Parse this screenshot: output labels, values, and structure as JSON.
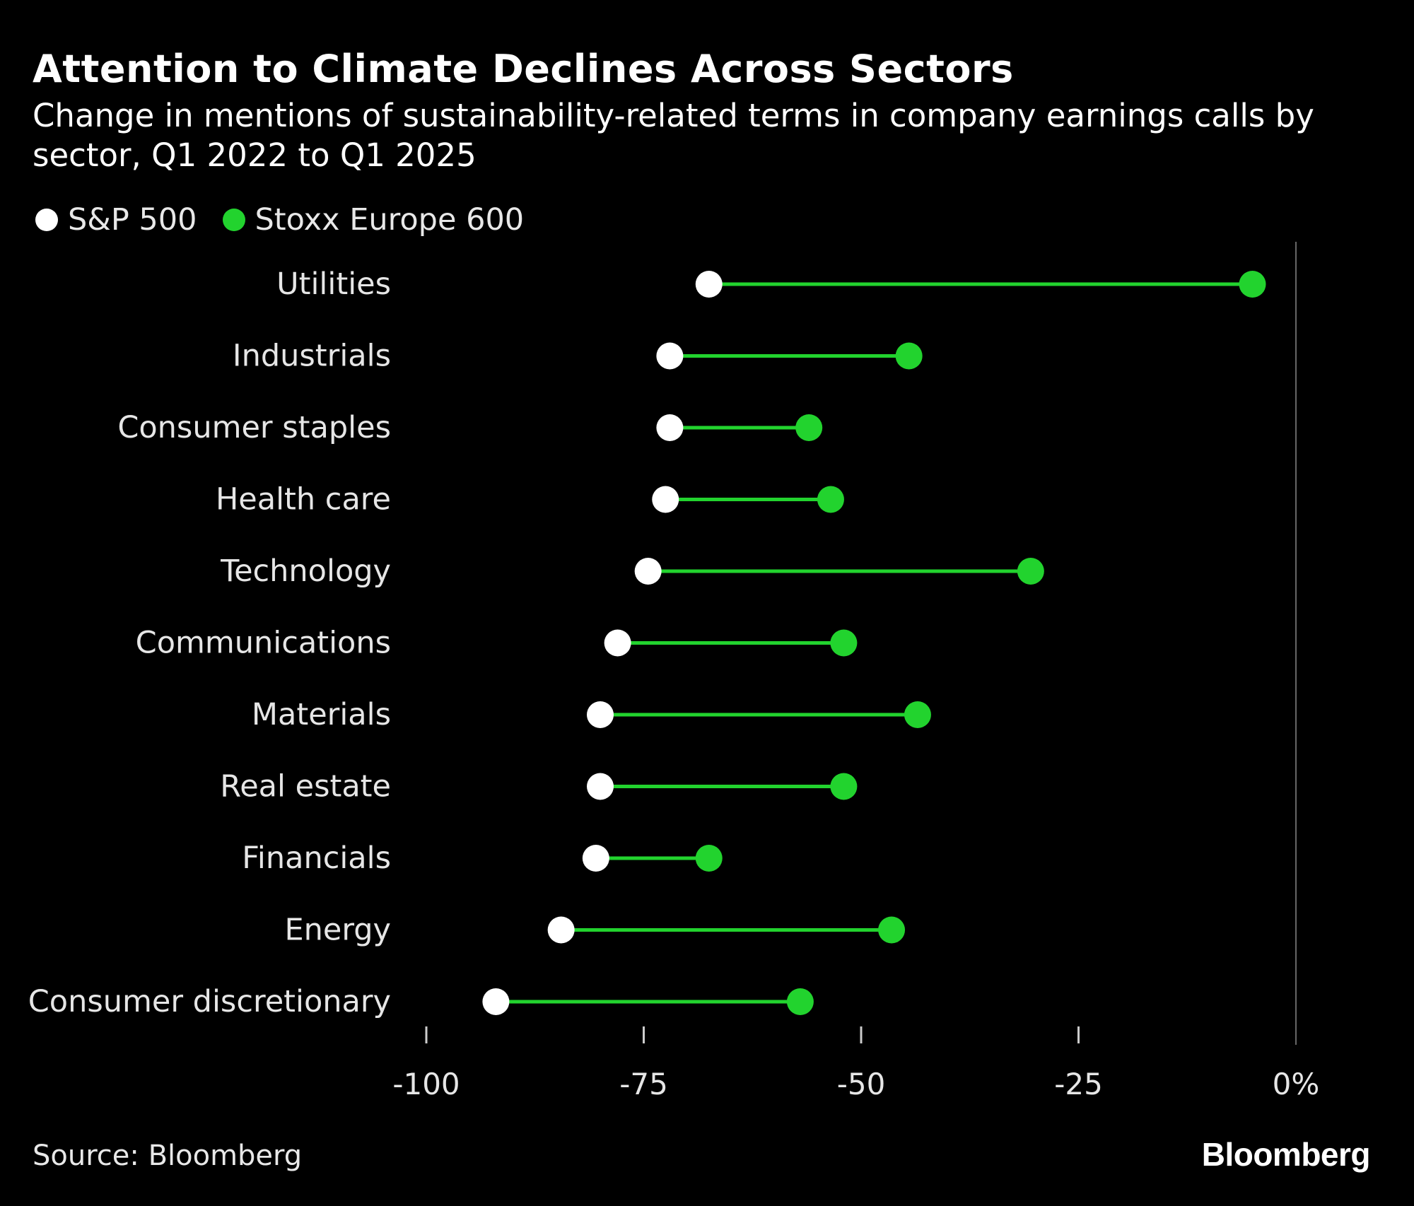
{
  "header": {
    "title": "Attention to Climate Declines Across Sectors",
    "subtitle": "Change in mentions of sustainability-related terms in company earnings calls by sector, Q1 2022 to Q1 2025"
  },
  "legend": [
    {
      "label": "S&P 500",
      "color": "#ffffff"
    },
    {
      "label": "Stoxx Europe 600",
      "color": "#22d32e"
    }
  ],
  "colors": {
    "background": "#000000",
    "sp500": "#ffffff",
    "stoxx": "#22d32e",
    "connector": "#22d32e",
    "zero_line": "#666666",
    "text": "#e6e6e6"
  },
  "chart_data": {
    "type": "dumbbell",
    "title": "Attention to Climate Declines Across Sectors",
    "subtitle": "Change in mentions of sustainability-related terms in company earnings calls by sector, Q1 2022 to Q1 2025",
    "xlabel": "",
    "ylabel": "",
    "xlim": [
      -100,
      0
    ],
    "xticks": [
      -100,
      -75,
      -50,
      -25,
      0
    ],
    "xtick_labels": [
      "-100",
      "-75",
      "-50",
      "-25",
      "0%"
    ],
    "grid": false,
    "legend_position": "top-left",
    "categories": [
      "Utilities",
      "Industrials",
      "Consumer staples",
      "Health care",
      "Technology",
      "Communications",
      "Materials",
      "Real estate",
      "Financials",
      "Energy",
      "Consumer discretionary"
    ],
    "series": [
      {
        "name": "S&P 500",
        "values": [
          -67.5,
          -72,
          -72,
          -72.5,
          -74.5,
          -78,
          -80,
          -80,
          -80.5,
          -84.5,
          -92
        ]
      },
      {
        "name": "Stoxx Europe 600",
        "values": [
          -5,
          -44.5,
          -56,
          -53.5,
          -30.5,
          -52,
          -43.5,
          -52,
          -67.5,
          -46.5,
          -57
        ]
      }
    ]
  },
  "footer": {
    "source": "Source: Bloomberg",
    "logo_text": "Bloomberg"
  }
}
